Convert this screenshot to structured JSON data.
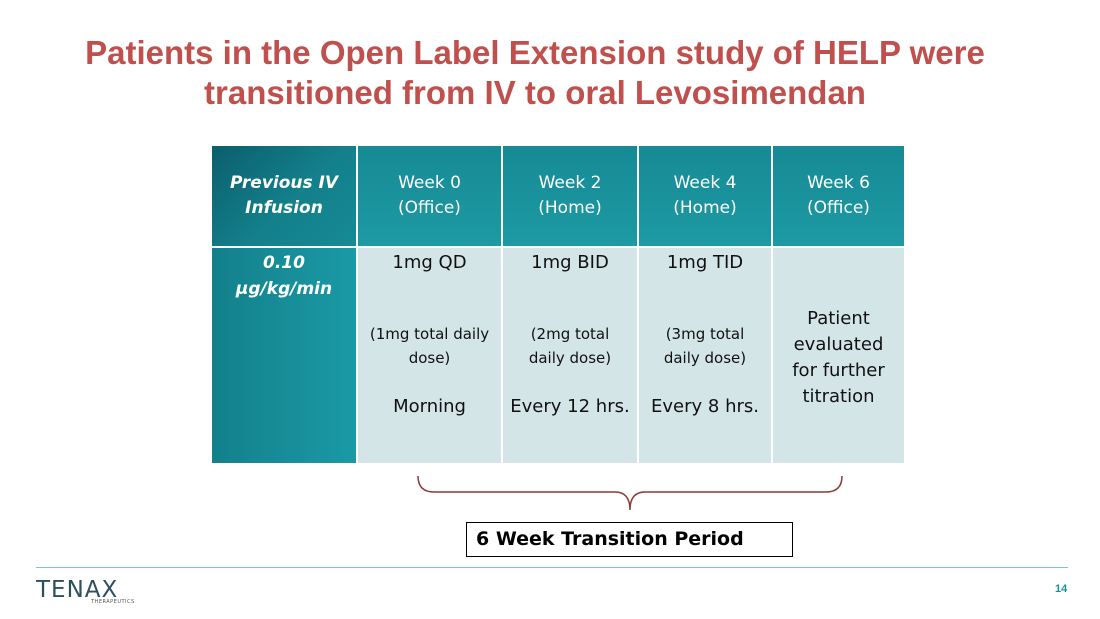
{
  "slide": {
    "title_line1": "Patients in the Open Label Extension study of HELP were",
    "title_line2": "transitioned from IV to oral Levosimendan",
    "page_number": "14",
    "accent_color": "#c0504d",
    "table_color": "#168a95"
  },
  "table": {
    "corner_header": [
      "Previous IV",
      "Infusion"
    ],
    "columns": [
      {
        "week": "Week 0",
        "place": "(Office)",
        "dose": "1mg QD",
        "total_line1": "(1mg total daily",
        "total_line2": "dose)",
        "timing": "Morning"
      },
      {
        "week": "Week 2",
        "place": "(Home)",
        "dose": "1mg BID",
        "total_line1": "(2mg total",
        "total_line2": "daily dose)",
        "timing": "Every 12 hrs."
      },
      {
        "week": "Week 4",
        "place": "(Home)",
        "dose": "1mg TID",
        "total_line1": "(3mg total",
        "total_line2": "daily dose)",
        "timing": "Every 8 hrs."
      }
    ],
    "final_column": {
      "week": "Week 6",
      "place": "(Office)",
      "evaluation_lines": [
        "Patient",
        "evaluated",
        "for further",
        "titration"
      ]
    },
    "iv_rate": [
      "0.10",
      "µg/kg/min"
    ]
  },
  "transition_label": "6 Week Transition Period",
  "logo": {
    "word": "TENAX",
    "sub": "THERAPEUTICS"
  }
}
